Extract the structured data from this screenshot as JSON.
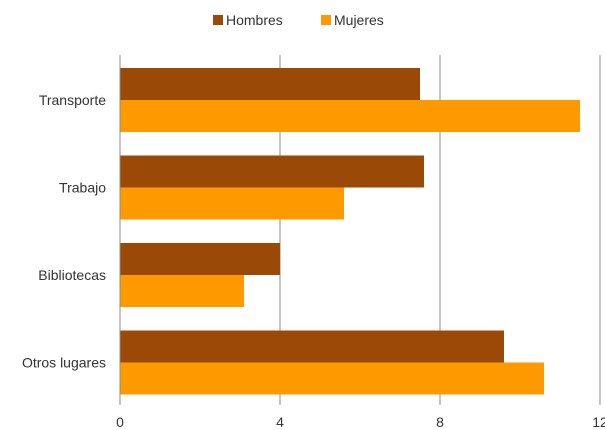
{
  "chart_data": {
    "type": "bar",
    "orientation": "horizontal",
    "title": "",
    "xlabel": "",
    "ylabel": "",
    "categories": [
      "Transporte",
      "Trabajo",
      "Bibliotecas",
      "Otros lugares"
    ],
    "series": [
      {
        "name": "Hombres",
        "color": "#9a4a06",
        "values": [
          7.5,
          7.6,
          4.0,
          9.6
        ]
      },
      {
        "name": "Mujeres",
        "color": "#ff9900",
        "values": [
          11.5,
          5.6,
          3.1,
          10.6
        ]
      }
    ],
    "xlim": [
      0,
      12
    ],
    "xticks": [
      "0",
      "4",
      "8",
      "12"
    ],
    "grid": true,
    "legend_position": "top-center"
  }
}
